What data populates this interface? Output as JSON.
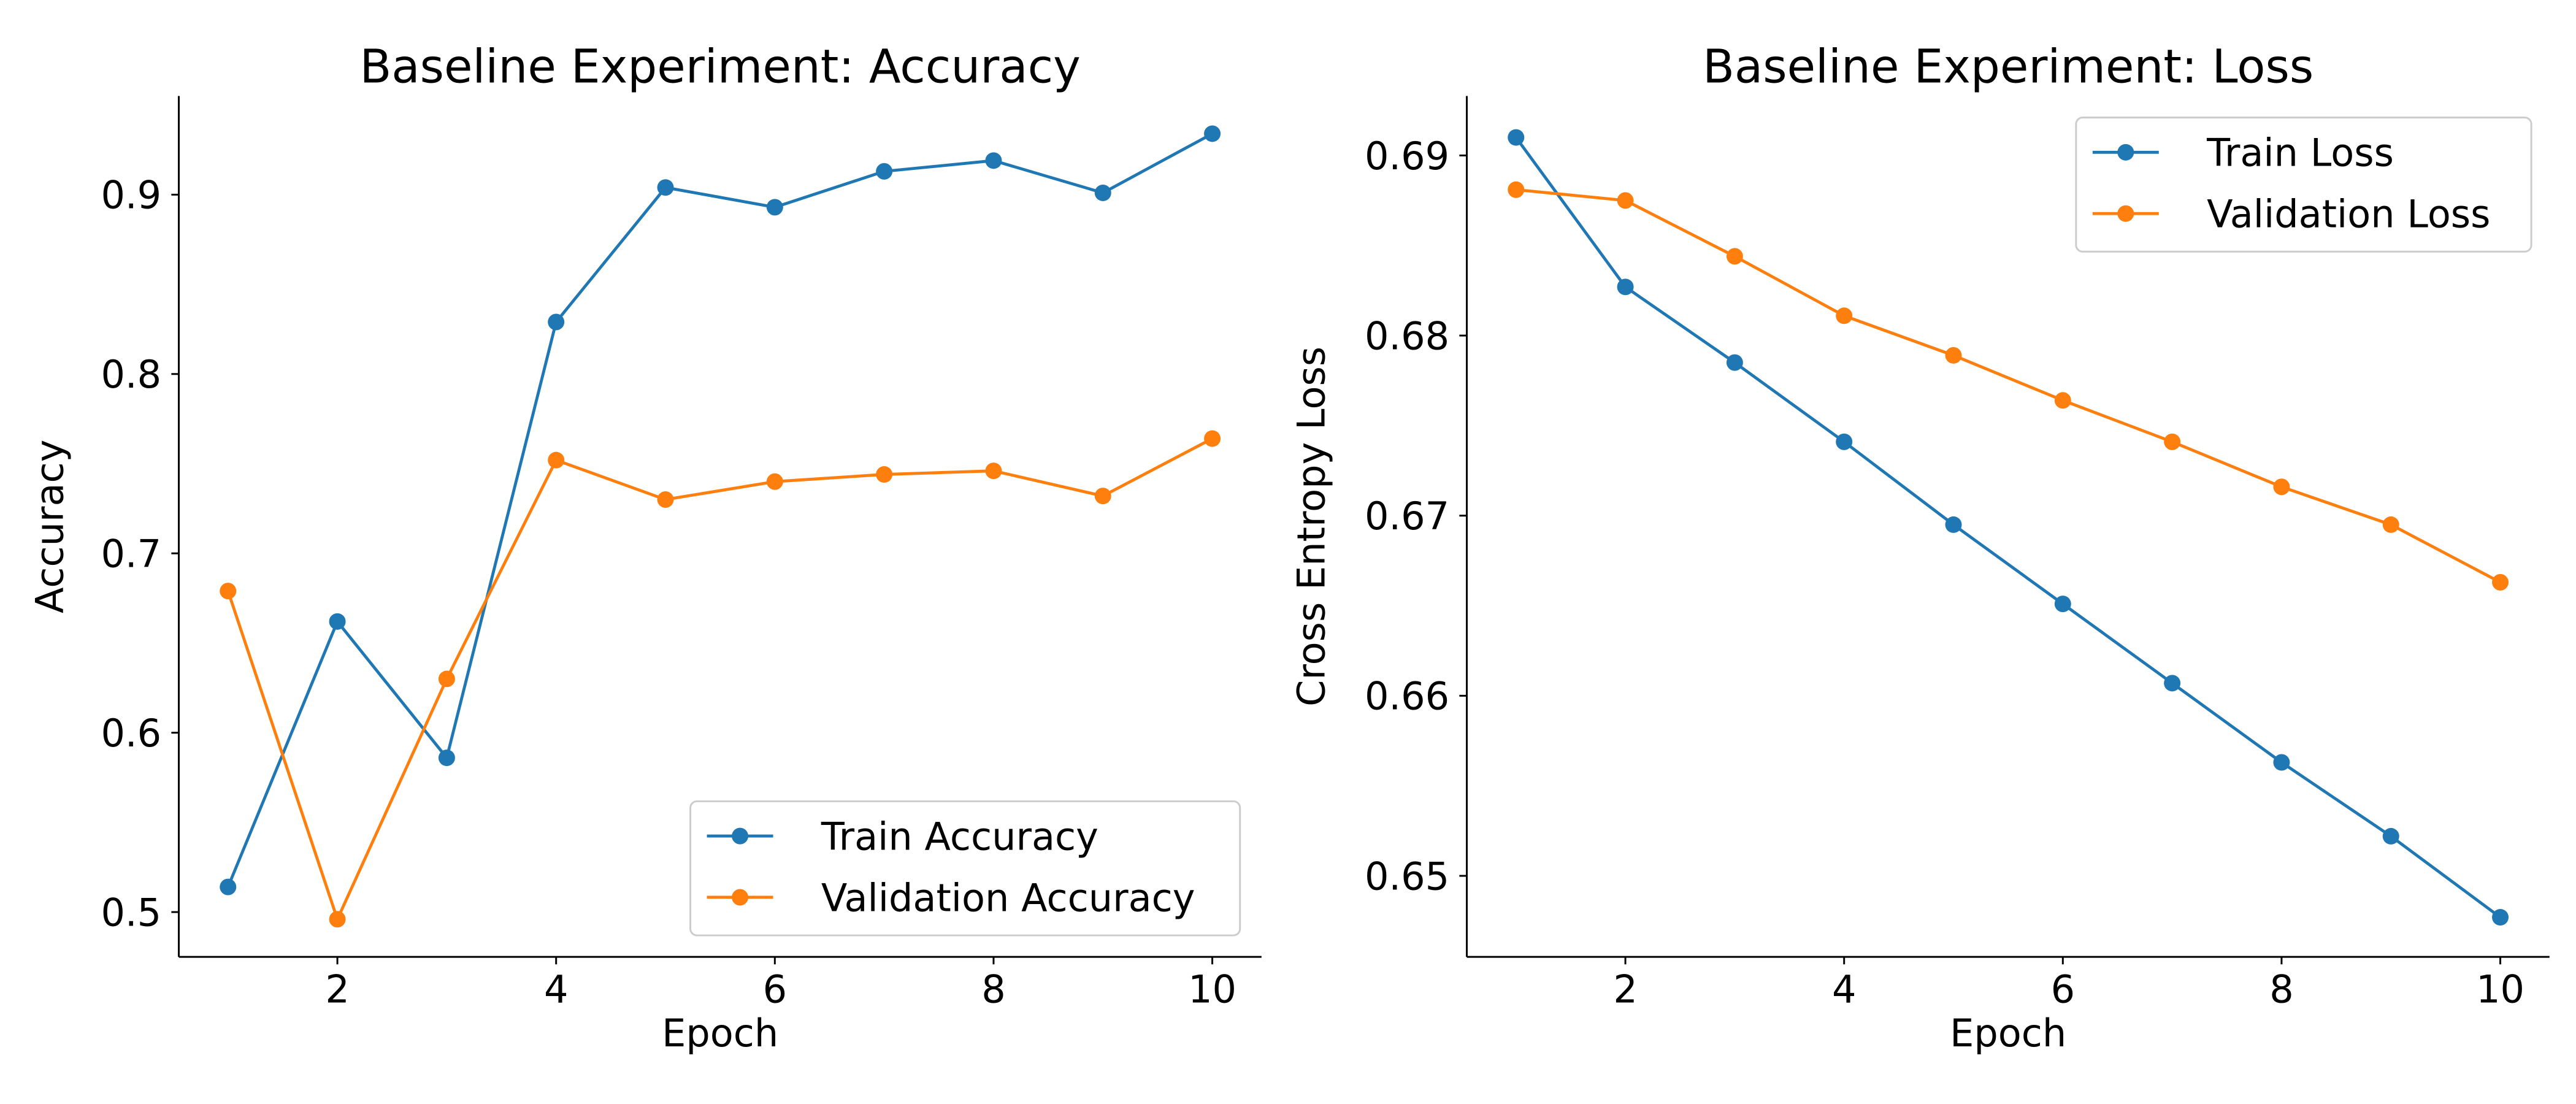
{
  "chart_data": [
    {
      "type": "line",
      "title": "Baseline Experiment: Accuracy",
      "xlabel": "Epoch",
      "ylabel": "Accuracy",
      "xlim": [
        0.55,
        10.45
      ],
      "ylim": [
        0.475,
        0.955
      ],
      "xticks": [
        2,
        4,
        6,
        8,
        10
      ],
      "yticks": [
        0.5,
        0.6,
        0.7,
        0.8,
        0.9
      ],
      "ytick_labels": [
        "0.5",
        "0.6",
        "0.7",
        "0.8",
        "0.9"
      ],
      "grid": false,
      "legend_position": "bottom-right",
      "x": [
        1,
        2,
        3,
        4,
        5,
        6,
        7,
        8,
        9,
        10
      ],
      "series": [
        {
          "name": "Train Accuracy",
          "color": "#1f77b4",
          "values": [
            0.514,
            0.662,
            0.586,
            0.829,
            0.904,
            0.893,
            0.913,
            0.919,
            0.901,
            0.934
          ]
        },
        {
          "name": "Validation Accuracy",
          "color": "#ff7f0e",
          "values": [
            0.679,
            0.496,
            0.63,
            0.752,
            0.73,
            0.74,
            0.744,
            0.746,
            0.732,
            0.764
          ]
        }
      ]
    },
    {
      "type": "line",
      "title": "Baseline Experiment: Loss",
      "xlabel": "Epoch",
      "ylabel": "Cross Entropy Loss",
      "xlim": [
        0.55,
        10.45
      ],
      "ylim": [
        0.6455,
        0.6933
      ],
      "xticks": [
        2,
        4,
        6,
        8,
        10
      ],
      "yticks": [
        0.65,
        0.66,
        0.67,
        0.68,
        0.69
      ],
      "ytick_labels": [
        "0.65",
        "0.66",
        "0.67",
        "0.68",
        "0.69"
      ],
      "grid": false,
      "legend_position": "top-right",
      "x": [
        1,
        2,
        3,
        4,
        5,
        6,
        7,
        8,
        9,
        10
      ],
      "series": [
        {
          "name": "Train Loss",
          "color": "#1f77b4",
          "values": [
            0.691,
            0.6827,
            0.6785,
            0.6741,
            0.6695,
            0.6651,
            0.6607,
            0.6563,
            0.6522,
            0.6477
          ]
        },
        {
          "name": "Validation Loss",
          "color": "#ff7f0e",
          "values": [
            0.6881,
            0.6875,
            0.6844,
            0.6811,
            0.6789,
            0.6764,
            0.6741,
            0.6716,
            0.6695,
            0.6663
          ]
        }
      ]
    }
  ]
}
